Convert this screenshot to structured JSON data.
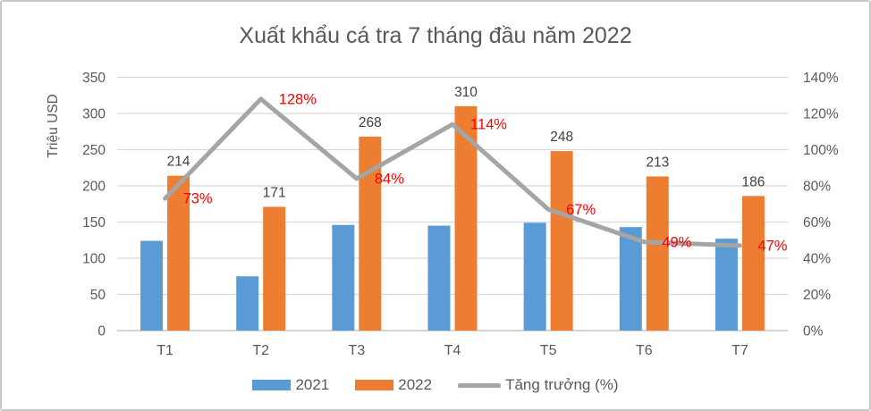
{
  "frame": {
    "background_color": "#ffffff",
    "border_color": "#c9c9c9"
  },
  "styles": {
    "title_color": "#595959",
    "axis_label_color": "#595959",
    "value_label_color": "#404040",
    "gridline_color": "#d9d9d9",
    "baseline_color": "#cfcfcf"
  },
  "chart_data": {
    "type": "bar",
    "subtype": "clustered-bar-with-line",
    "title": "Xuất khẩu cá tra 7 tháng đầu năm 2022",
    "ylabel_left": "Triệu USD",
    "categories": [
      "T1",
      "T2",
      "T3",
      "T4",
      "T5",
      "T6",
      "T7"
    ],
    "series": [
      {
        "name": "2021",
        "type": "bar",
        "color": "#5b9bd5",
        "values": [
          124,
          75,
          146,
          145,
          149,
          143,
          127
        ],
        "labels_shown": false
      },
      {
        "name": "2022",
        "type": "bar",
        "color": "#ed7d31",
        "values": [
          214,
          171,
          268,
          310,
          248,
          213,
          186
        ],
        "labels_shown": true
      }
    ],
    "line_series": {
      "name": "Tăng trưởng (%)",
      "color": "#a5a5a5",
      "label_color": "#ff0000",
      "values_pct": [
        73,
        128,
        84,
        114,
        67,
        49,
        47
      ],
      "point_labels": [
        "73%",
        "128%",
        "84%",
        "114%",
        "67%",
        "49%",
        "47%"
      ]
    },
    "axes": {
      "left": {
        "min": 0,
        "max": 350,
        "step": 50,
        "ticks": [
          "0",
          "50",
          "100",
          "150",
          "200",
          "250",
          "300",
          "350"
        ]
      },
      "right": {
        "min": 0,
        "max": 140,
        "step": 20,
        "ticks": [
          "0%",
          "20%",
          "40%",
          "60%",
          "80%",
          "100%",
          "120%",
          "140%"
        ]
      }
    },
    "grid": true,
    "legend_position": "bottom"
  }
}
